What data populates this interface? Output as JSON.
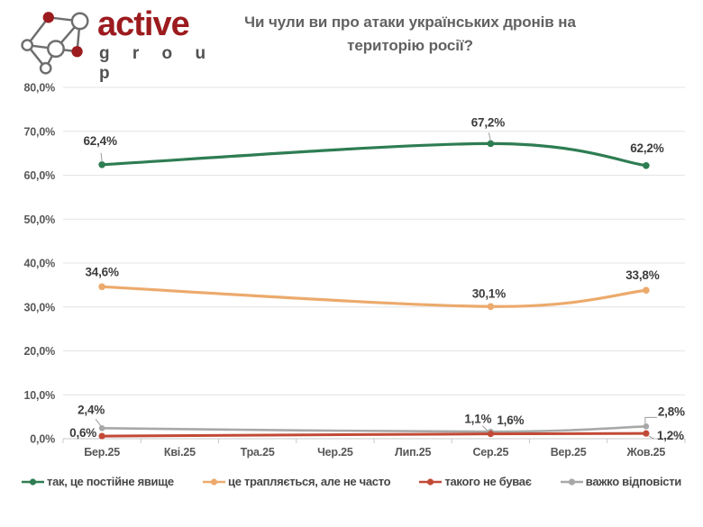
{
  "logo": {
    "brand": "active",
    "sub": "g r o u p"
  },
  "header": {
    "title_line1": "Чи чули ви про атаки українських дронів на",
    "title_line2": "територію росії?"
  },
  "colors": {
    "brand_red": "#9c1b1e",
    "logo_gray": "#6e6e6e",
    "grid": "#e4e4e4",
    "axis": "#c8c8c8",
    "leader": "#9b9b9b",
    "data_label": "#3c3c3c",
    "tick_label": "#585858"
  },
  "chart_data": {
    "type": "line",
    "title": "Чи чули ви про атаки українських дронів на територію росії?",
    "categories": [
      "Бер.25",
      "Кві.25",
      "Тра.25",
      "Чер.25",
      "Лип.25",
      "Сер.25",
      "Вер.25",
      "Жов.25"
    ],
    "point_category_indices": [
      0,
      5,
      7
    ],
    "series": [
      {
        "name": "так, це постійне явище",
        "color": "#2e7d52",
        "values": [
          62.4,
          67.2,
          62.2
        ],
        "labels": [
          "62,4%",
          "67,2%",
          "62,2%"
        ]
      },
      {
        "name": "це трапляється, але не часто",
        "color": "#ecaa6c",
        "values": [
          34.6,
          30.1,
          33.8
        ],
        "labels": [
          "34,6%",
          "30,1%",
          "33,8%"
        ]
      },
      {
        "name": "такого не буває",
        "color": "#c24936",
        "values": [
          0.6,
          1.1,
          1.2
        ],
        "labels": [
          "0,6%",
          "1,1%",
          "1,2%"
        ]
      },
      {
        "name": "важко відповісти",
        "color": "#a8a8a8",
        "values": [
          2.4,
          1.6,
          2.8
        ],
        "labels": [
          "2,4%",
          "1,6%",
          "2,8%"
        ]
      }
    ],
    "ylim": [
      0,
      80
    ],
    "ytick_step": 10,
    "ytick_labels": [
      "0,0%",
      "10,0%",
      "20,0%",
      "30,0%",
      "40,0%",
      "50,0%",
      "60,0%",
      "70,0%",
      "80,0%"
    ],
    "grid": true,
    "legend_position": "bottom",
    "value_suffix": "%"
  }
}
